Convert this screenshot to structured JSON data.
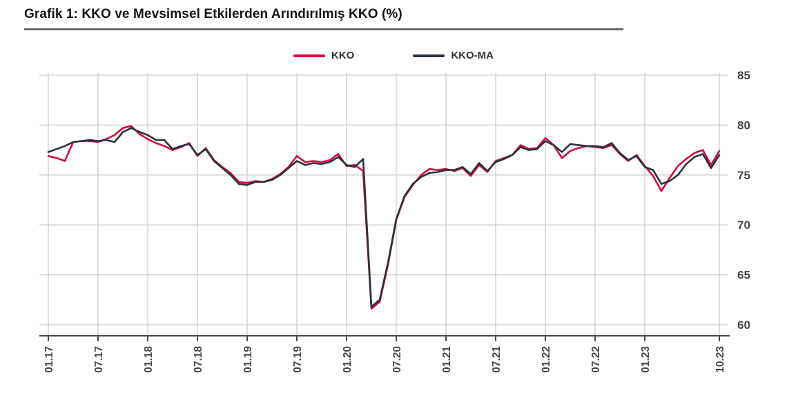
{
  "header": {
    "title": "Grafik 1: KKO ve Mevsimsel Etkilerden Arındırılmış KKO (%)"
  },
  "legend": [
    {
      "label": "KKO",
      "color": "#D5093E"
    },
    {
      "label": "KKO-MA",
      "color": "#28333E"
    }
  ],
  "colors": {
    "grid": "#cccccc",
    "axis": "#4a4a4a",
    "tick_text": "#454545"
  },
  "chart_data": {
    "type": "line",
    "title": "Grafik 1: KKO ve Mevsimsel Etkilerden Arındırılmış KKO (%)",
    "xlabel": "",
    "ylabel": "",
    "x_start": "01.17",
    "x_end": "10.23",
    "x_frequency": "monthly",
    "x_tick_labels": [
      "01.17",
      "07.17",
      "01.18",
      "07.18",
      "01.19",
      "07.19",
      "01.20",
      "07.20",
      "01.21",
      "07.21",
      "01.22",
      "07.22",
      "01.23",
      "10.23"
    ],
    "x_tick_indices": [
      0,
      6,
      12,
      18,
      24,
      30,
      36,
      42,
      48,
      54,
      60,
      66,
      72,
      81
    ],
    "ylim": [
      60,
      85
    ],
    "y_ticks": [
      60,
      65,
      70,
      75,
      80,
      85
    ],
    "y_axis_side": "right",
    "grid": true,
    "legend_position": "top-center",
    "series": [
      {
        "name": "KKO",
        "color": "#D5093E",
        "values": [
          76.9,
          76.7,
          76.4,
          78.3,
          78.4,
          78.4,
          78.3,
          78.6,
          79.0,
          79.7,
          79.9,
          79.1,
          78.6,
          78.2,
          77.9,
          77.5,
          77.8,
          78.2,
          76.9,
          77.7,
          76.5,
          75.8,
          75.2,
          74.3,
          74.2,
          74.4,
          74.3,
          74.6,
          75.1,
          75.8,
          76.9,
          76.3,
          76.4,
          76.3,
          76.5,
          77.1,
          75.9,
          76.0,
          75.4,
          61.6,
          62.3,
          66.0,
          70.5,
          72.8,
          74.0,
          75.0,
          75.6,
          75.5,
          75.6,
          75.4,
          75.7,
          74.9,
          76.0,
          75.3,
          76.4,
          76.7,
          77.0,
          78.0,
          77.6,
          77.7,
          78.7,
          78.0,
          76.7,
          77.4,
          77.7,
          77.9,
          77.8,
          77.7,
          78.0,
          77.1,
          76.4,
          77.0,
          75.9,
          74.9,
          73.4,
          74.7,
          75.9,
          76.6,
          77.2,
          77.5,
          76.0,
          77.4
        ]
      },
      {
        "name": "KKO-MA",
        "color": "#28333E",
        "values": [
          77.3,
          77.6,
          77.9,
          78.3,
          78.4,
          78.5,
          78.4,
          78.5,
          78.3,
          79.3,
          79.7,
          79.3,
          79.0,
          78.5,
          78.5,
          77.6,
          77.9,
          78.1,
          77.0,
          77.6,
          76.4,
          75.7,
          75.0,
          74.1,
          74.0,
          74.3,
          74.3,
          74.5,
          75.0,
          75.7,
          76.4,
          76.0,
          76.2,
          76.1,
          76.3,
          76.8,
          76.0,
          75.8,
          76.6,
          61.8,
          62.5,
          66.2,
          70.6,
          72.9,
          74.1,
          74.8,
          75.2,
          75.3,
          75.5,
          75.5,
          75.8,
          75.1,
          76.2,
          75.4,
          76.3,
          76.6,
          77.0,
          77.8,
          77.5,
          77.6,
          78.4,
          78.0,
          77.3,
          78.1,
          78.0,
          77.9,
          77.9,
          77.8,
          78.2,
          77.2,
          76.5,
          76.9,
          75.8,
          75.5,
          74.1,
          74.4,
          75.0,
          76.1,
          76.8,
          77.1,
          75.7,
          77.0
        ]
      }
    ]
  }
}
